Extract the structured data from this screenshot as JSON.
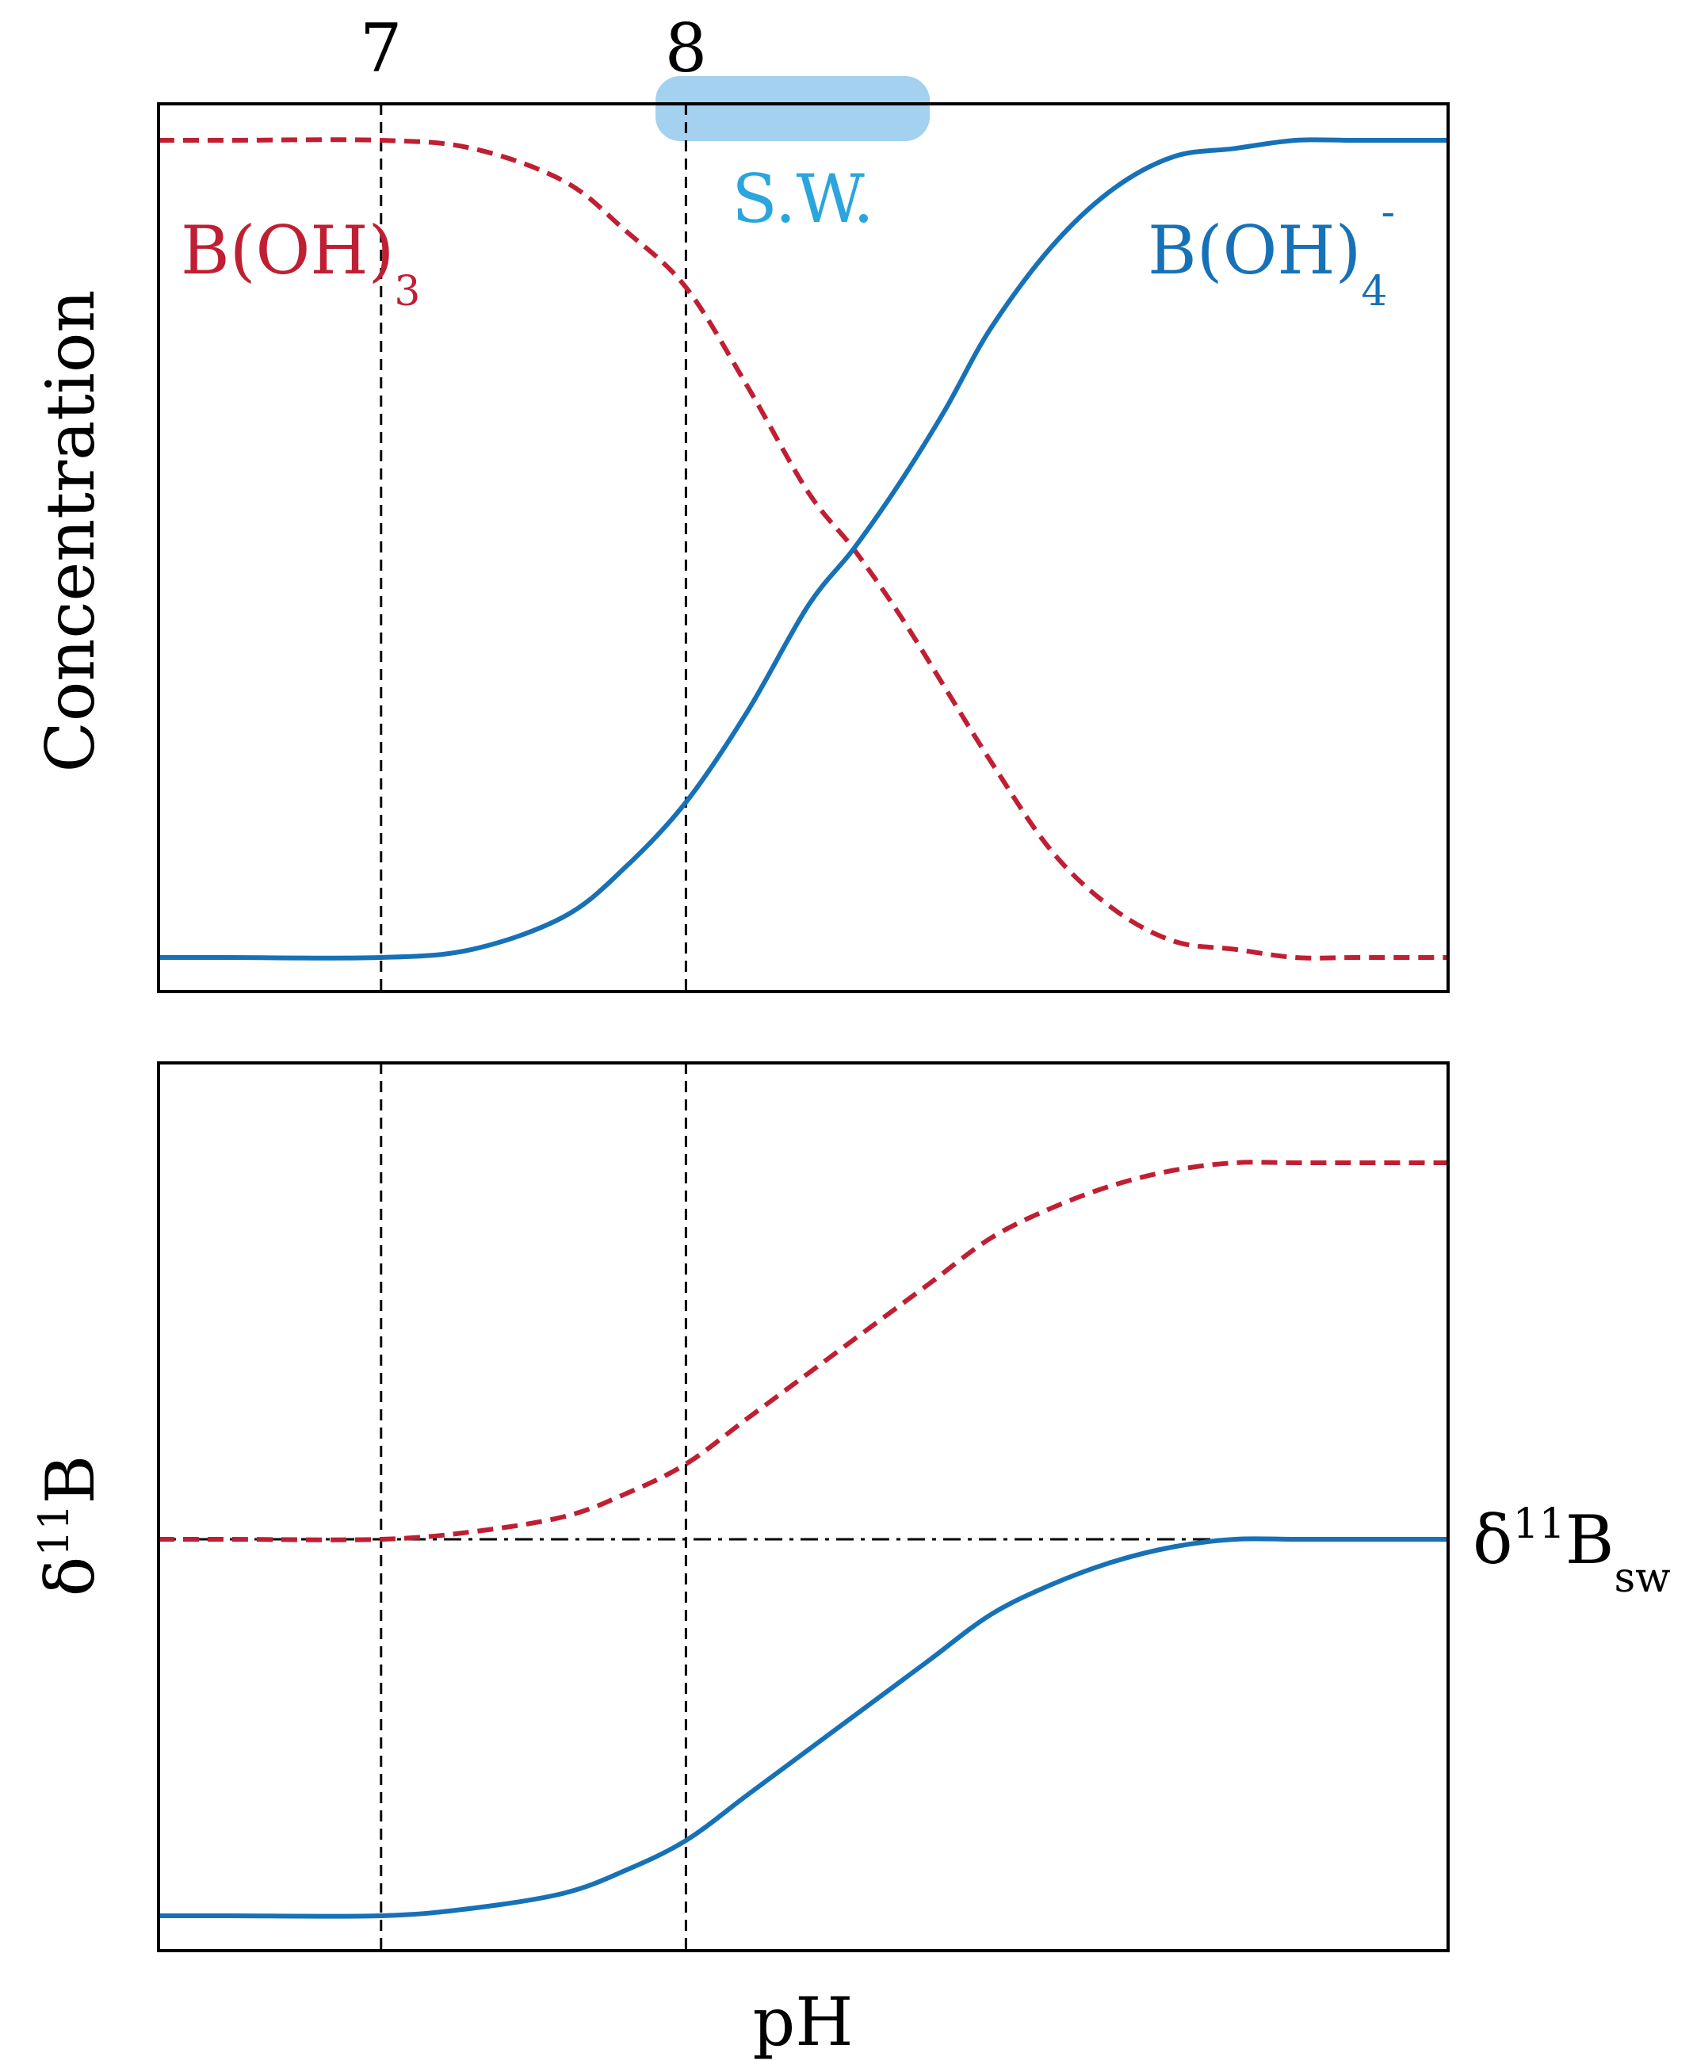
{
  "chart_data": [
    {
      "type": "line",
      "panel": "top",
      "ylabel": "Concentration",
      "xlabel": "",
      "xlim": [
        6.27,
        10.5
      ],
      "ylim": [
        -0.05,
        1.05
      ],
      "x_ticks_top": [
        7,
        8
      ],
      "band": {
        "label": "S.W.",
        "x_range": [
          7.9,
          8.8
        ],
        "color": "#a3d1ef",
        "label_color": "#2aa5dd"
      },
      "series": [
        {
          "name": "B(OH)3",
          "name_base": "B(OH)",
          "name_sub": "3",
          "name_sup": "",
          "style": "dashed",
          "color": "#c01f33",
          "x": [
            6.27,
            6.5,
            7.0,
            7.3,
            7.6,
            7.8,
            8.0,
            8.2,
            8.4,
            8.55,
            8.7,
            8.85,
            9.0,
            9.2,
            9.4,
            9.6,
            9.8,
            10.0,
            10.2,
            10.5
          ],
          "values": [
            1.0,
            1.0,
            1.0,
            0.99,
            0.95,
            0.89,
            0.82,
            0.7,
            0.57,
            0.5,
            0.42,
            0.33,
            0.24,
            0.13,
            0.06,
            0.02,
            0.01,
            0.0,
            0.0,
            0.0
          ]
        },
        {
          "name": "B(OH)4-",
          "name_base": "B(OH)",
          "name_sub": "4",
          "name_sup": "-",
          "style": "solid",
          "color": "#1771b7",
          "x": [
            6.27,
            6.5,
            7.0,
            7.3,
            7.6,
            7.8,
            8.0,
            8.2,
            8.4,
            8.55,
            8.7,
            8.85,
            9.0,
            9.2,
            9.4,
            9.6,
            9.8,
            10.0,
            10.2,
            10.5
          ],
          "values": [
            0.0,
            0.0,
            0.0,
            0.01,
            0.05,
            0.11,
            0.19,
            0.3,
            0.43,
            0.5,
            0.58,
            0.67,
            0.77,
            0.87,
            0.94,
            0.98,
            0.99,
            1.0,
            1.0,
            1.0
          ]
        }
      ]
    },
    {
      "type": "line",
      "panel": "bottom",
      "ylabel": "δ11B",
      "ylabel_base": "δ",
      "ylabel_sup": "11",
      "ylabel_end": "B",
      "xlabel": "pH",
      "xlim": [
        6.27,
        10.5
      ],
      "ylim": [
        -0.05,
        1.05
      ],
      "reference": {
        "label_base": "δ",
        "label_sup": "11",
        "label_mid": "B",
        "label_sub": "sw",
        "y": 0.5,
        "style": "dashdot"
      },
      "series": [
        {
          "name": "",
          "style": "dashed",
          "color": "#c01f33",
          "x": [
            6.27,
            6.5,
            7.0,
            7.3,
            7.6,
            7.8,
            8.0,
            8.2,
            8.4,
            8.6,
            8.8,
            9.0,
            9.2,
            9.4,
            9.6,
            9.8,
            10.0,
            10.2,
            10.5
          ],
          "values": [
            0.5,
            0.5,
            0.5,
            0.51,
            0.53,
            0.56,
            0.6,
            0.66,
            0.72,
            0.78,
            0.84,
            0.9,
            0.94,
            0.97,
            0.99,
            1.0,
            1.0,
            1.0,
            1.0
          ]
        },
        {
          "name": "",
          "style": "solid",
          "color": "#1771b7",
          "x": [
            6.27,
            6.5,
            7.0,
            7.3,
            7.6,
            7.8,
            8.0,
            8.2,
            8.4,
            8.6,
            8.8,
            9.0,
            9.2,
            9.4,
            9.6,
            9.8,
            10.0,
            10.2,
            10.5
          ],
          "values": [
            0.0,
            0.0,
            0.0,
            0.01,
            0.03,
            0.06,
            0.1,
            0.16,
            0.22,
            0.28,
            0.34,
            0.4,
            0.44,
            0.47,
            0.49,
            0.5,
            0.5,
            0.5,
            0.5
          ]
        }
      ]
    }
  ],
  "vlines": [
    7,
    8
  ],
  "colors": {
    "frame": "#000000",
    "vline": "#000000",
    "refline": "#000000"
  }
}
